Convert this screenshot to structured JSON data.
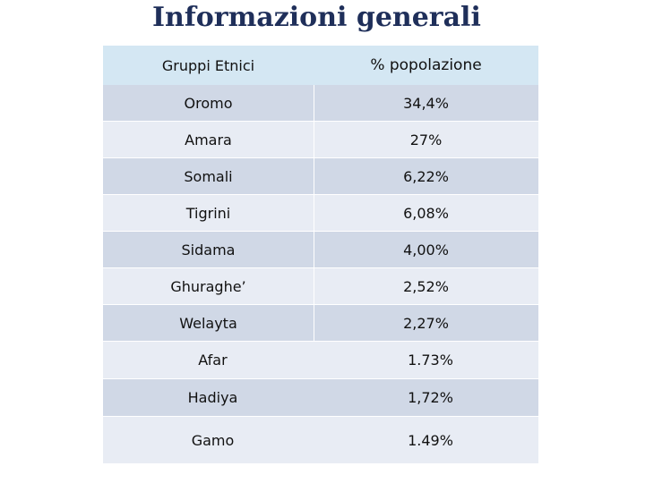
{
  "title": "Informazioni generali",
  "table": {
    "headers": [
      "Gruppi Etnici",
      "% popolazione"
    ],
    "rows": [
      [
        "Oromo",
        "34,4%"
      ],
      [
        "Amara",
        "27%"
      ],
      [
        "Somali",
        "6,22%"
      ],
      [
        "Tigrini",
        "6,08%"
      ],
      [
        "Sidama",
        "4,00%"
      ],
      [
        "Ghuraghe’",
        "2,52%"
      ],
      [
        "Welayta",
        "2,27%"
      ],
      [
        "Afar",
        "1.73%"
      ],
      [
        "Hadiya",
        "1,72%"
      ],
      [
        "Gamo",
        "1.49%"
      ]
    ]
  },
  "colors": {
    "title": "#1f2f5a",
    "header_bg": "#d4e7f3",
    "row_dark": "#d0d8e6",
    "row_light": "#e8ecf4"
  }
}
